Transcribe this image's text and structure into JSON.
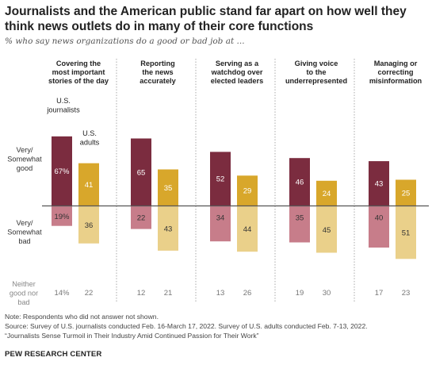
{
  "title": "Journalists and the American public stand far apart on how well they think news outlets do in many of their core functions",
  "subtitle": "% who say news organizations do a good or bad job at ...",
  "colors": {
    "journalists_good": "#7b2c3f",
    "adults_good": "#d8a72b",
    "journalists_bad": "#c77d8a",
    "adults_bad": "#ead08a",
    "axis": "#555555"
  },
  "chart_data": {
    "type": "bar",
    "categories": [
      "Covering the most important stories of the day",
      "Reporting the news accurately",
      "Serving as a watchdog over elected leaders",
      "Giving voice to the underrepresented",
      "Managing or correcting misinformation"
    ],
    "category_lines": [
      [
        "Covering the",
        "most important",
        "stories of the day"
      ],
      [
        "Reporting",
        "the news",
        "accurately"
      ],
      [
        "Serving as a",
        "watchdog over",
        "elected leaders"
      ],
      [
        "Giving voice",
        "to the",
        "underrepresented"
      ],
      [
        "Managing or",
        "correcting",
        "misinformation"
      ]
    ],
    "groups": [
      "Very/Somewhat good",
      "Very/Somewhat bad",
      "Neither good nor bad"
    ],
    "series": [
      {
        "name": "U.S. journalists",
        "good": [
          67,
          65,
          52,
          46,
          43
        ],
        "bad": [
          19,
          22,
          34,
          35,
          40
        ],
        "neither": [
          14,
          12,
          13,
          19,
          17
        ]
      },
      {
        "name": "U.S. adults",
        "good": [
          41,
          35,
          29,
          24,
          25
        ],
        "bad": [
          36,
          43,
          44,
          45,
          51
        ],
        "neither": [
          22,
          21,
          26,
          30,
          23
        ]
      }
    ],
    "percent_shown_on": "first",
    "row_labels": {
      "good": [
        "Very/",
        "Somewhat",
        "good"
      ],
      "bad": [
        "Very/",
        "Somewhat",
        "bad"
      ],
      "neither": [
        "Neither",
        "good nor",
        "bad"
      ]
    },
    "series_labels": {
      "journalists": [
        "U.S.",
        "journalists"
      ],
      "adults": [
        "U.S.",
        "adults"
      ]
    }
  },
  "footer": {
    "note": "Note: Respondents who did not answer not shown.",
    "source": "Source: Survey of U.S. journalists conducted Feb. 16-March 17, 2022. Survey of U.S. adults conducted Feb. 7-13, 2022.",
    "report": "“Journalists Sense Turmoil in Their Industry Amid Continued Passion for Their Work”"
  },
  "logo": "PEW RESEARCH CENTER"
}
